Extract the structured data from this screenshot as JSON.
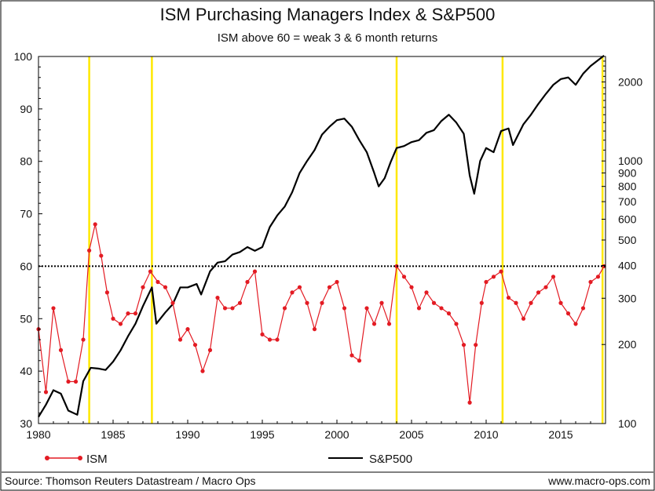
{
  "chart_data": {
    "type": "line",
    "title": "ISM Purchasing Managers Index & S&P500",
    "subtitle": "ISM above 60 = weak 3 & 6 month returns",
    "source": "Source: Thomson Reuters Datastream / Macro Ops",
    "website": "www.macro-ops.com",
    "x_ticks": [
      "1980",
      "1985",
      "1990",
      "1995",
      "2000",
      "2005",
      "2010",
      "2015"
    ],
    "y_left_ticks": [
      "30",
      "40",
      "50",
      "60",
      "70",
      "80",
      "90",
      "100"
    ],
    "y_right_ticks": [
      "100",
      "200",
      "300",
      "400",
      "500",
      "600",
      "700",
      "800",
      "900",
      "1000",
      "2000"
    ],
    "xlim": [
      1980,
      2018
    ],
    "ylim_left": [
      30,
      100
    ],
    "ylim_right": [
      100,
      2500
    ],
    "y_right_scale": "log",
    "threshold": 60,
    "highlight_years": [
      1983.4,
      1987.6,
      2004.0,
      2011.1,
      2017.8
    ],
    "series": [
      {
        "name": "ISM",
        "axis": "left",
        "color": "#e31b23",
        "marker": "circle",
        "x": [
          1980.0,
          1980.5,
          1981.0,
          1981.5,
          1982.0,
          1982.5,
          1983.0,
          1983.4,
          1983.8,
          1984.2,
          1984.6,
          1985.0,
          1985.5,
          1986.0,
          1986.5,
          1987.0,
          1987.5,
          1988.0,
          1988.5,
          1989.0,
          1989.5,
          1990.0,
          1990.5,
          1991.0,
          1991.5,
          1992.0,
          1992.5,
          1993.0,
          1993.5,
          1994.0,
          1994.5,
          1995.0,
          1995.5,
          1996.0,
          1996.5,
          1997.0,
          1997.5,
          1998.0,
          1998.5,
          1999.0,
          1999.5,
          2000.0,
          2000.5,
          2001.0,
          2001.5,
          2002.0,
          2002.5,
          2003.0,
          2003.5,
          2004.0,
          2004.5,
          2005.0,
          2005.5,
          2006.0,
          2006.5,
          2007.0,
          2007.5,
          2008.0,
          2008.5,
          2008.9,
          2009.3,
          2009.7,
          2010.0,
          2010.5,
          2011.0,
          2011.5,
          2012.0,
          2012.5,
          2013.0,
          2013.5,
          2014.0,
          2014.5,
          2015.0,
          2015.5,
          2016.0,
          2016.5,
          2017.0,
          2017.5,
          2017.9
        ],
        "values": [
          48,
          36,
          52,
          44,
          38,
          38,
          46,
          63,
          68,
          62,
          55,
          50,
          49,
          51,
          51,
          56,
          59,
          57,
          56,
          53,
          46,
          48,
          45,
          40,
          44,
          54,
          52,
          52,
          53,
          57,
          59,
          47,
          46,
          46,
          52,
          55,
          56,
          53,
          48,
          53,
          56,
          57,
          52,
          43,
          42,
          52,
          49,
          53,
          49,
          60,
          58,
          56,
          52,
          55,
          53,
          52,
          51,
          49,
          45,
          34,
          45,
          53,
          57,
          58,
          59,
          54,
          53,
          50,
          53,
          55,
          56,
          58,
          53,
          51,
          49,
          52,
          57,
          58,
          60
        ]
      },
      {
        "name": "S&P500",
        "axis": "right",
        "color": "#000000",
        "x": [
          1980.0,
          1980.5,
          1981.0,
          1981.5,
          1982.0,
          1982.6,
          1983.0,
          1983.5,
          1984.0,
          1984.5,
          1985.0,
          1985.5,
          1986.0,
          1986.5,
          1987.0,
          1987.6,
          1987.9,
          1988.5,
          1989.0,
          1989.5,
          1990.0,
          1990.6,
          1990.9,
          1991.5,
          1992.0,
          1992.5,
          1993.0,
          1993.5,
          1994.0,
          1994.5,
          1995.0,
          1995.5,
          1996.0,
          1996.5,
          1997.0,
          1997.5,
          1998.0,
          1998.5,
          1999.0,
          1999.5,
          2000.0,
          2000.5,
          2001.0,
          2001.5,
          2002.0,
          2002.5,
          2002.8,
          2003.2,
          2003.6,
          2004.0,
          2004.5,
          2005.0,
          2005.5,
          2006.0,
          2006.5,
          2007.0,
          2007.5,
          2008.0,
          2008.5,
          2008.9,
          2009.2,
          2009.6,
          2010.0,
          2010.5,
          2011.0,
          2011.5,
          2011.8,
          2012.5,
          2013.0,
          2013.5,
          2014.0,
          2014.5,
          2015.0,
          2015.5,
          2016.0,
          2016.5,
          2017.0,
          2017.5,
          2017.9
        ],
        "values": [
          106,
          118,
          134,
          130,
          112,
          108,
          145,
          163,
          162,
          160,
          172,
          190,
          215,
          240,
          280,
          330,
          240,
          265,
          285,
          330,
          330,
          340,
          310,
          380,
          410,
          415,
          440,
          450,
          470,
          455,
          470,
          560,
          620,
          670,
          760,
          900,
          1000,
          1100,
          1260,
          1350,
          1430,
          1450,
          1350,
          1200,
          1080,
          900,
          800,
          860,
          990,
          1120,
          1140,
          1180,
          1200,
          1280,
          1310,
          1420,
          1500,
          1400,
          1270,
          880,
          750,
          1000,
          1120,
          1080,
          1300,
          1330,
          1150,
          1380,
          1500,
          1650,
          1800,
          1950,
          2050,
          2080,
          1950,
          2150,
          2300,
          2420,
          2520
        ]
      }
    ]
  }
}
